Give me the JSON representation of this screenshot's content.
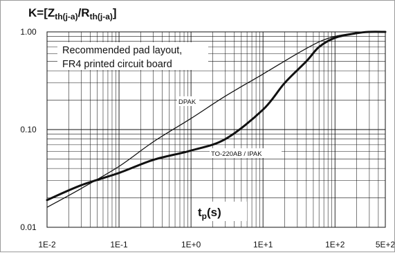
{
  "chart_data": {
    "type": "line",
    "title_parts": {
      "prefix": "K=[Z",
      "sub1": "th(j-a)",
      "mid": "/R",
      "sub2": "th(j-a)",
      "suffix": "]"
    },
    "xlabel_parts": {
      "main": "t",
      "sub": "p",
      "suffix": "(s)"
    },
    "x_scale": "log",
    "y_scale": "log",
    "xlim": [
      0.01,
      500
    ],
    "ylim": [
      0.01,
      1
    ],
    "x_ticks": [
      {
        "value": 0.01,
        "label": "1E-2"
      },
      {
        "value": 0.1,
        "label": "1E-1"
      },
      {
        "value": 1,
        "label": "1E+0"
      },
      {
        "value": 10,
        "label": "1E+1"
      },
      {
        "value": 100,
        "label": "1E+2"
      },
      {
        "value": 500,
        "label": "5E+2"
      }
    ],
    "y_ticks": [
      {
        "value": 1,
        "label": "1.00"
      },
      {
        "value": 0.1,
        "label": "0.10"
      },
      {
        "value": 0.01,
        "label": "0.01"
      }
    ],
    "grid": true,
    "annotation": [
      "Recommended pad layout,",
      "FR4 printed circuit board"
    ],
    "series": [
      {
        "name": "DPAK",
        "style": "thin",
        "x": [
          0.01,
          0.03,
          0.1,
          0.3,
          1,
          3,
          10,
          30,
          60,
          100,
          200,
          300,
          500
        ],
        "y": [
          0.016,
          0.025,
          0.042,
          0.075,
          0.13,
          0.22,
          0.37,
          0.6,
          0.79,
          0.9,
          0.98,
          1.0,
          1.0
        ]
      },
      {
        "name": "TO-220AB / IPAK",
        "style": "thick",
        "x": [
          0.01,
          0.03,
          0.1,
          0.3,
          1,
          3,
          10,
          20,
          40,
          60,
          100,
          200,
          300,
          500
        ],
        "y": [
          0.019,
          0.027,
          0.036,
          0.049,
          0.061,
          0.08,
          0.16,
          0.3,
          0.5,
          0.7,
          0.87,
          0.97,
          1.0,
          1.0
        ]
      }
    ]
  },
  "style": {
    "line_color": "#111111",
    "grid_color": "#111111",
    "background": "#ffffff"
  }
}
